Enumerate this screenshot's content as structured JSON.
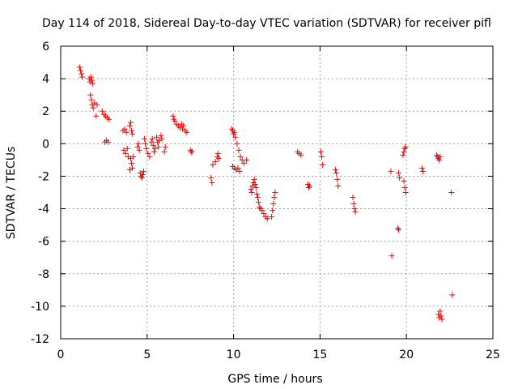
{
  "chart_data": {
    "type": "scatter",
    "title": "Day 114 of 2018, Sidereal Day-to-day VTEC variation (SDTVAR) for receiver pifl",
    "xlabel": "GPS time / hours",
    "ylabel": "SDTVAR / TECUs",
    "xlim": [
      0,
      25
    ],
    "ylim": [
      -12,
      6
    ],
    "xticks": [
      0,
      5,
      10,
      15,
      20,
      25
    ],
    "yticks": [
      6,
      4,
      2,
      0,
      -2,
      -4,
      -6,
      -8,
      -10,
      -12
    ],
    "grid": true,
    "marker": "+",
    "color": "#ff0000",
    "series": [
      {
        "name": "SDTVAR",
        "points": [
          [
            1.1,
            4.7
          ],
          [
            1.15,
            4.5
          ],
          [
            1.2,
            4.3
          ],
          [
            1.25,
            4.1
          ],
          [
            1.65,
            4.0
          ],
          [
            1.7,
            3.8
          ],
          [
            1.75,
            4.1
          ],
          [
            1.8,
            3.9
          ],
          [
            1.85,
            3.7
          ],
          [
            1.72,
            3.0
          ],
          [
            1.78,
            2.7
          ],
          [
            1.82,
            2.4
          ],
          [
            1.88,
            2.2
          ],
          [
            1.95,
            2.5
          ],
          [
            2.1,
            2.4
          ],
          [
            2.05,
            1.7
          ],
          [
            2.4,
            2.0
          ],
          [
            2.5,
            1.8
          ],
          [
            2.6,
            1.7
          ],
          [
            2.7,
            1.6
          ],
          [
            2.8,
            1.5
          ],
          [
            2.55,
            0.1
          ],
          [
            2.65,
            0.2
          ],
          [
            2.75,
            0.1
          ],
          [
            3.6,
            0.8
          ],
          [
            3.7,
            0.9
          ],
          [
            3.8,
            0.7
          ],
          [
            3.65,
            -0.4
          ],
          [
            3.75,
            -0.6
          ],
          [
            3.85,
            -0.3
          ],
          [
            3.9,
            -0.8
          ],
          [
            4.0,
            1.1
          ],
          [
            4.05,
            1.3
          ],
          [
            4.1,
            0.8
          ],
          [
            4.15,
            0.6
          ],
          [
            4.05,
            -0.9
          ],
          [
            4.1,
            -1.2
          ],
          [
            4.15,
            -1.5
          ],
          [
            4.0,
            -1.6
          ],
          [
            4.2,
            -0.8
          ],
          [
            4.45,
            -0.2
          ],
          [
            4.5,
            0.0
          ],
          [
            4.55,
            -0.4
          ],
          [
            4.6,
            -1.8
          ],
          [
            4.65,
            -2.0
          ],
          [
            4.7,
            -2.1
          ],
          [
            4.75,
            -1.9
          ],
          [
            4.8,
            -1.7
          ],
          [
            4.85,
            0.3
          ],
          [
            4.9,
            0.0
          ],
          [
            4.95,
            -0.3
          ],
          [
            5.05,
            -0.6
          ],
          [
            5.15,
            -0.8
          ],
          [
            5.25,
            0.1
          ],
          [
            5.3,
            0.3
          ],
          [
            5.35,
            -0.1
          ],
          [
            5.4,
            -0.5
          ],
          [
            5.45,
            -0.3
          ],
          [
            5.55,
            0.4
          ],
          [
            5.6,
            0.1
          ],
          [
            5.65,
            -0.2
          ],
          [
            5.7,
            0.2
          ],
          [
            5.8,
            0.5
          ],
          [
            5.85,
            0.3
          ],
          [
            6.0,
            -0.5
          ],
          [
            6.05,
            -0.2
          ],
          [
            6.5,
            1.7
          ],
          [
            6.55,
            1.5
          ],
          [
            6.6,
            1.4
          ],
          [
            6.7,
            1.2
          ],
          [
            6.8,
            1.1
          ],
          [
            6.9,
            1.0
          ],
          [
            7.0,
            1.2
          ],
          [
            7.05,
            0.9
          ],
          [
            7.1,
            1.1
          ],
          [
            7.2,
            0.8
          ],
          [
            7.3,
            0.7
          ],
          [
            7.5,
            -0.4
          ],
          [
            7.55,
            -0.5
          ],
          [
            7.6,
            -0.5
          ],
          [
            8.7,
            -2.1
          ],
          [
            8.75,
            -2.4
          ],
          [
            8.8,
            -1.3
          ],
          [
            8.95,
            -1.1
          ],
          [
            9.05,
            -0.8
          ],
          [
            9.1,
            -0.6
          ],
          [
            9.15,
            -0.9
          ],
          [
            9.9,
            0.9
          ],
          [
            9.95,
            0.8
          ],
          [
            10.0,
            0.6
          ],
          [
            10.05,
            0.7
          ],
          [
            10.1,
            0.4
          ],
          [
            10.2,
            0.0
          ],
          [
            10.3,
            -0.4
          ],
          [
            10.4,
            -0.8
          ],
          [
            10.5,
            -1.0
          ],
          [
            10.6,
            -1.2
          ],
          [
            10.75,
            -1.0
          ],
          [
            9.95,
            -1.4
          ],
          [
            10.05,
            -1.5
          ],
          [
            10.15,
            -1.6
          ],
          [
            10.25,
            -1.5
          ],
          [
            10.35,
            -1.7
          ],
          [
            11.0,
            -2.8
          ],
          [
            11.05,
            -3.0
          ],
          [
            11.1,
            -2.6
          ],
          [
            11.15,
            -2.4
          ],
          [
            11.2,
            -2.2
          ],
          [
            11.25,
            -2.5
          ],
          [
            11.3,
            -2.7
          ],
          [
            11.35,
            -3.1
          ],
          [
            11.4,
            -3.3
          ],
          [
            11.45,
            -3.6
          ],
          [
            11.5,
            -3.9
          ],
          [
            11.55,
            -4.0
          ],
          [
            11.65,
            -4.1
          ],
          [
            11.75,
            -4.3
          ],
          [
            11.85,
            -4.5
          ],
          [
            11.95,
            -4.6
          ],
          [
            12.2,
            -4.5
          ],
          [
            12.25,
            -4.1
          ],
          [
            12.3,
            -3.7
          ],
          [
            12.35,
            -3.3
          ],
          [
            12.4,
            -3.0
          ],
          [
            13.7,
            -0.5
          ],
          [
            13.8,
            -0.6
          ],
          [
            13.9,
            -0.7
          ],
          [
            14.3,
            -2.5
          ],
          [
            14.35,
            -2.7
          ],
          [
            14.4,
            -2.6
          ],
          [
            15.05,
            -0.5
          ],
          [
            15.1,
            -0.8
          ],
          [
            15.15,
            -1.3
          ],
          [
            15.9,
            -1.6
          ],
          [
            15.95,
            -1.8
          ],
          [
            16.0,
            -2.2
          ],
          [
            16.05,
            -2.6
          ],
          [
            16.9,
            -3.3
          ],
          [
            16.95,
            -3.7
          ],
          [
            17.0,
            -4.0
          ],
          [
            17.05,
            -4.2
          ],
          [
            19.1,
            -1.7
          ],
          [
            19.15,
            -6.9
          ],
          [
            19.55,
            -1.8
          ],
          [
            19.6,
            -2.1
          ],
          [
            19.5,
            -5.2
          ],
          [
            19.55,
            -5.3
          ],
          [
            19.85,
            -2.3
          ],
          [
            19.9,
            -2.7
          ],
          [
            19.95,
            -3.0
          ],
          [
            19.8,
            -0.7
          ],
          [
            19.85,
            -0.5
          ],
          [
            19.9,
            -0.3
          ],
          [
            19.95,
            -0.2
          ],
          [
            20.9,
            -1.5
          ],
          [
            20.95,
            -1.7
          ],
          [
            21.75,
            -0.7
          ],
          [
            21.8,
            -0.8
          ],
          [
            21.85,
            -0.9
          ],
          [
            21.9,
            -1.0
          ],
          [
            21.95,
            -0.8
          ],
          [
            21.85,
            -10.5
          ],
          [
            21.9,
            -10.7
          ],
          [
            21.95,
            -10.3
          ],
          [
            22.0,
            -10.6
          ],
          [
            22.05,
            -10.8
          ],
          [
            22.6,
            -3.0
          ],
          [
            22.65,
            -9.3
          ]
        ]
      }
    ]
  }
}
